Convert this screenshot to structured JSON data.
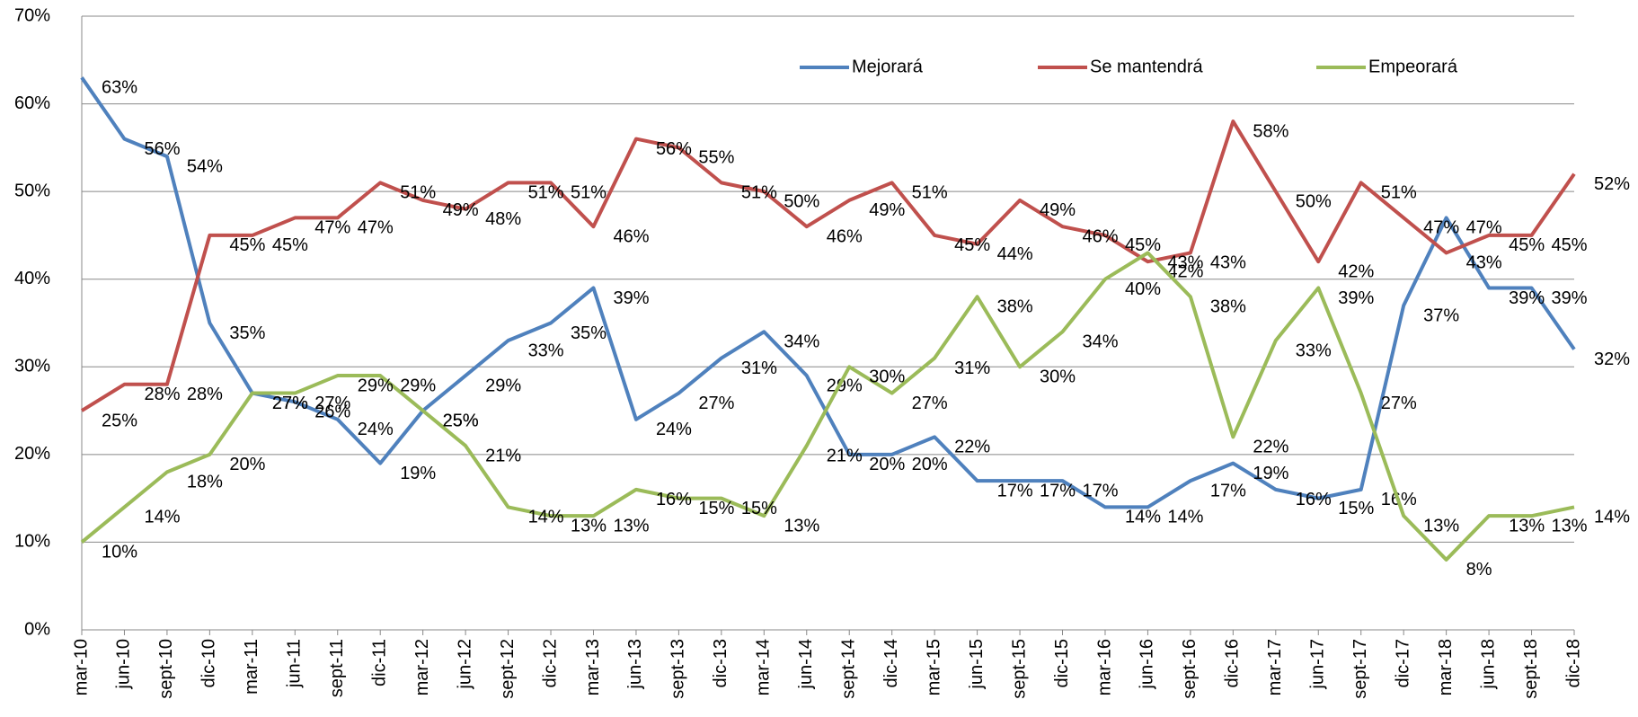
{
  "chart_data": {
    "type": "line",
    "categories": [
      "mar-10",
      "jun-10",
      "sept-10",
      "dic-10",
      "mar-11",
      "jun-11",
      "sept-11",
      "dic-11",
      "mar-12",
      "jun-12",
      "sept-12",
      "dic-12",
      "mar-13",
      "jun-13",
      "sept-13",
      "dic-13",
      "mar-14",
      "jun-14",
      "sept-14",
      "dic-14",
      "mar-15",
      "jun-15",
      "sept-15",
      "dic-15",
      "mar-16",
      "jun-16",
      "sept-16",
      "dic-16",
      "mar-17",
      "jun-17",
      "sept-17",
      "dic-17",
      "mar-18",
      "jun-18",
      "sept-18",
      "dic-18"
    ],
    "series": [
      {
        "name": "Mejorará",
        "color": "#4f81bd",
        "values": [
          63,
          56,
          54,
          35,
          27,
          26,
          24,
          19,
          25,
          29,
          33,
          35,
          39,
          24,
          27,
          31,
          34,
          29,
          20,
          20,
          22,
          17,
          17,
          17,
          14,
          14,
          17,
          19,
          16,
          15,
          16,
          37,
          47,
          39,
          39,
          32
        ],
        "value_labels": [
          "63%",
          "56%",
          "54%",
          "35%",
          "27%",
          "26%",
          "24%",
          "19%",
          "25%",
          "29%",
          "33%",
          "35%",
          "39%",
          "24%",
          "27%",
          "31%",
          "34%",
          "29%",
          "20%",
          "20%",
          "22%",
          "17%",
          "17%",
          "17%",
          "14%",
          "14%",
          "17%",
          "19%",
          "16%",
          "15%",
          "16%",
          "37%",
          "47%",
          "39%",
          "39%",
          "32%"
        ]
      },
      {
        "name": "Se mantendrá",
        "color": "#c0504d",
        "values": [
          25,
          28,
          28,
          45,
          45,
          47,
          47,
          51,
          49,
          48,
          51,
          51,
          46,
          56,
          55,
          51,
          50,
          46,
          49,
          51,
          45,
          44,
          49,
          46,
          45,
          42,
          43,
          58,
          50,
          42,
          51,
          47,
          43,
          45,
          45,
          52
        ],
        "value_labels": [
          "25%",
          "28%",
          "28%",
          "45%",
          "45%",
          "47%",
          "47%",
          "51%",
          "49%",
          "48%",
          "51%",
          "51%",
          "46%",
          "56%",
          "55%",
          "51%",
          "50%",
          "46%",
          "49%",
          "51%",
          "45%",
          "44%",
          "49%",
          "46%",
          "45%",
          "42%",
          "43%",
          "58%",
          "50%",
          "42%",
          "51%",
          "47%",
          "43%",
          "45%",
          "45%",
          "52%"
        ]
      },
      {
        "name": "Empeorará",
        "color": "#9bbb59",
        "values": [
          10,
          14,
          18,
          20,
          27,
          27,
          29,
          29,
          25,
          21,
          14,
          13,
          13,
          16,
          15,
          15,
          13,
          21,
          30,
          27,
          31,
          38,
          30,
          34,
          40,
          43,
          38,
          22,
          33,
          39,
          27,
          13,
          8,
          13,
          13,
          14
        ],
        "value_labels": [
          "10%",
          "14%",
          "18%",
          "20%",
          "27%",
          "27%",
          "29%",
          "29%",
          "25%",
          "21%",
          "14%",
          "13%",
          "13%",
          "16%",
          "15%",
          "15%",
          "13%",
          "21%",
          "30%",
          "27%",
          "31%",
          "38%",
          "30%",
          "34%",
          "40%",
          "43%",
          "38%",
          "22%",
          "33%",
          "39%",
          "27%",
          "13%",
          "8%",
          "13%",
          "13%",
          "14%"
        ]
      }
    ],
    "ylim": [
      0,
      70
    ],
    "yticks": [
      {
        "value": 0,
        "label": "0%"
      },
      {
        "value": 10,
        "label": "10%"
      },
      {
        "value": 20,
        "label": "20%"
      },
      {
        "value": 30,
        "label": "30%"
      },
      {
        "value": 40,
        "label": "40%"
      },
      {
        "value": 50,
        "label": "50%"
      },
      {
        "value": 60,
        "label": "60%"
      },
      {
        "value": 70,
        "label": "70%"
      }
    ],
    "grid": true,
    "legend": "top"
  }
}
